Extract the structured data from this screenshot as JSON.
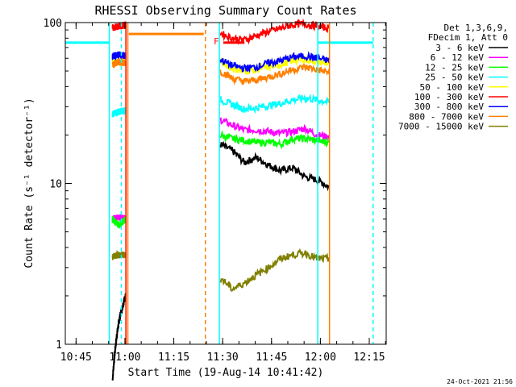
{
  "chart_data": {
    "type": "line",
    "title": "RHESSI Observing Summary Count Rates",
    "xlabel": "Start Time (19-Aug-14 10:41:42)",
    "ylabel": "Count Rate (s⁻¹ detector⁻¹)",
    "x_unit": "minutes after 10:41:42",
    "xlim": [
      0,
      98.5
    ],
    "ylim": [
      1,
      100
    ],
    "yscale": "log",
    "x_ticks": [
      "10:45",
      "11:00",
      "11:15",
      "11:30",
      "11:45",
      "12:00",
      "12:15"
    ],
    "x_tick_minutes": [
      3.3,
      18.3,
      33.3,
      48.3,
      63.3,
      78.3,
      93.3
    ],
    "y_ticks": [
      {
        "label": "1",
        "value": 1
      },
      {
        "label": "10",
        "value": 10
      },
      {
        "label": "100",
        "value": 100
      }
    ],
    "legend_header": [
      "Det 1,3,6,9,",
      "FDecim 1, Att 0"
    ],
    "legend_position": "right",
    "annotation": "F",
    "footer": "24-Oct-2021 21:56",
    "series": [
      {
        "name": "3 - 6 keV",
        "color": "#000000",
        "seg1": [
          0.6,
          1.4,
          2.0
        ],
        "seg2": [
          17.5,
          16.0,
          13.5,
          14.5,
          13.0,
          12.0,
          12.5,
          11.0,
          10.5,
          9.5
        ]
      },
      {
        "name": "6 - 12 keV",
        "color": "#ff00ff",
        "seg1": [
          6.0,
          6.2,
          6.0
        ],
        "seg2": [
          25.0,
          23.0,
          21.5,
          21.5,
          21.0,
          20.5,
          21.0,
          22.0,
          20.0,
          19.5
        ]
      },
      {
        "name": "12 - 25 keV",
        "color": "#00ff00",
        "seg1": [
          6.0,
          5.5,
          6.0
        ],
        "seg2": [
          20.0,
          19.0,
          18.5,
          18.0,
          18.0,
          17.5,
          19.0,
          19.0,
          18.5,
          18.0
        ]
      },
      {
        "name": "25 - 50 keV",
        "color": "#00ffff",
        "seg1": [
          27.0,
          28.0,
          28.5
        ],
        "seg2": [
          33.0,
          31.0,
          29.0,
          29.5,
          30.5,
          31.5,
          33.0,
          34.0,
          33.0,
          32.0
        ]
      },
      {
        "name": "50 - 100 keV",
        "color": "#ffff00",
        "seg1": [
          57.0,
          57.0,
          57.0
        ],
        "seg2": [
          57.0,
          52.0,
          50.0,
          51.0,
          53.0,
          55.0,
          58.0,
          59.0,
          57.0,
          56.0
        ]
      },
      {
        "name": "100 - 300 keV",
        "color": "#ff0000",
        "seg1": [
          93.0,
          95.0,
          97.0
        ],
        "seg2": [
          86.0,
          80.0,
          78.0,
          83.0,
          88.0,
          92.0,
          97.0,
          98.0,
          95.0,
          92.0
        ]
      },
      {
        "name": "300 - 800 keV",
        "color": "#0000ff",
        "seg1": [
          62.0,
          63.0,
          62.0
        ],
        "seg2": [
          59.0,
          54.0,
          52.0,
          53.0,
          56.0,
          58.0,
          61.0,
          62.0,
          60.0,
          58.0
        ]
      },
      {
        "name": "800 - 7000 keV",
        "color": "#ff8000",
        "seg1": [
          55.0,
          57.0,
          56.0
        ],
        "seg2": [
          50.0,
          45.0,
          43.0,
          44.0,
          46.0,
          48.0,
          51.0,
          53.0,
          51.0,
          49.0
        ]
      },
      {
        "name": "7000 - 15000 keV",
        "color": "#808000",
        "seg1": [
          3.5,
          3.6,
          3.6
        ],
        "seg2": [
          2.6,
          2.2,
          2.4,
          2.7,
          3.0,
          3.4,
          3.6,
          3.7,
          3.4,
          3.4
        ]
      }
    ],
    "seg1_x": [
      14.5,
      18.5
    ],
    "seg2_x": [
      47.5,
      81.0
    ],
    "cyan_level": 75,
    "cyan_spans": [
      [
        0,
        13.5
      ],
      [
        77.5,
        94.5
      ]
    ],
    "orange_span": [
      19.5,
      42.5
    ],
    "orange_level": 85,
    "f_bar": [
      48.5,
      55.0
    ],
    "f_level": 75,
    "markers": [
      {
        "x": 13.5,
        "color": "#00ffff",
        "style": "solid"
      },
      {
        "x": 17.2,
        "color": "#00ffff",
        "style": "dashed"
      },
      {
        "x": 18.6,
        "color": "#ff0000",
        "style": "solid"
      },
      {
        "x": 19.2,
        "color": "#ff8000",
        "style": "solid"
      },
      {
        "x": 43.0,
        "color": "#ff8000",
        "style": "dashed"
      },
      {
        "x": 47.3,
        "color": "#00ffff",
        "style": "solid"
      },
      {
        "x": 77.5,
        "color": "#00ffff",
        "style": "solid"
      },
      {
        "x": 81.1,
        "color": "#ff8000",
        "style": "solid"
      },
      {
        "x": 94.5,
        "color": "#00ffff",
        "style": "dashed"
      }
    ]
  }
}
